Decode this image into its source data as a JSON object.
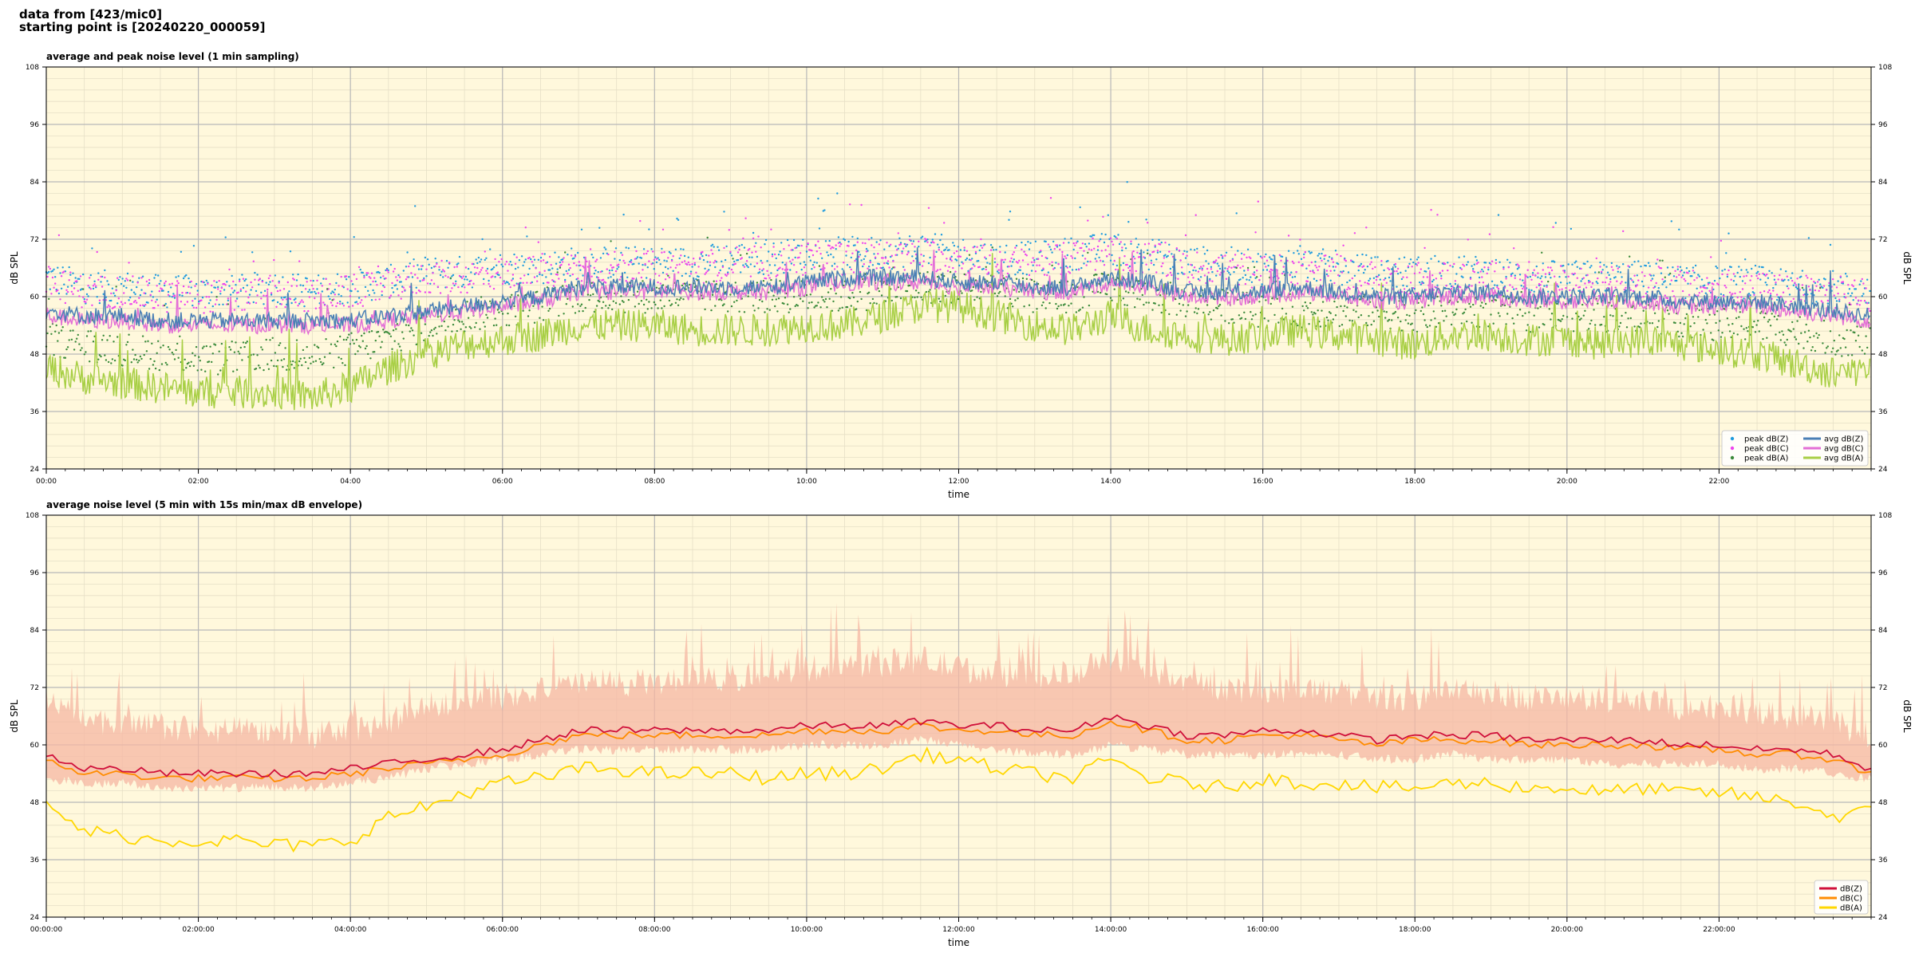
{
  "header": {
    "line1": "data from [423/mic0]",
    "line2": "starting point is [20240220_000059]"
  },
  "colors": {
    "plot_bg": "#fff8dc",
    "peak_z": "#1f9bde",
    "peak_c": "#ee44ee",
    "peak_a": "#3a8a3a",
    "avg_z": "#4a7fb5",
    "avg_c": "#e36fd6",
    "avg_a": "#a8cf45",
    "db_z": "#d0103a",
    "db_c": "#ff8c00",
    "db_a": "#ffd700",
    "envelope": "#f5b7a3"
  },
  "chart_data": [
    {
      "type": "scatter",
      "title": "average and peak noise level (1 min sampling)",
      "xlabel": "time",
      "ylabel": "dB SPL",
      "ylim": [
        24,
        108
      ],
      "yticks": [
        24,
        36,
        48,
        60,
        72,
        84,
        96,
        108
      ],
      "xlim": [
        "00:00",
        "24:00"
      ],
      "xticks": [
        "00:00",
        "02:00",
        "04:00",
        "06:00",
        "08:00",
        "10:00",
        "12:00",
        "14:00",
        "16:00",
        "18:00",
        "20:00",
        "22:00"
      ],
      "grid": true,
      "legend_position": "bottom-right",
      "x": [
        "00:00",
        "00:30",
        "01:00",
        "01:30",
        "02:00",
        "02:30",
        "03:00",
        "03:30",
        "04:00",
        "04:30",
        "05:00",
        "05:30",
        "06:00",
        "06:30",
        "07:00",
        "07:30",
        "08:00",
        "08:30",
        "09:00",
        "09:30",
        "10:00",
        "10:30",
        "11:00",
        "11:30",
        "12:00",
        "12:30",
        "13:00",
        "13:30",
        "14:00",
        "14:30",
        "15:00",
        "15:30",
        "16:00",
        "16:30",
        "17:00",
        "17:30",
        "18:00",
        "18:30",
        "19:00",
        "19:30",
        "20:00",
        "20:30",
        "21:00",
        "21:30",
        "22:00",
        "22:30",
        "23:00",
        "23:30",
        "23:59"
      ],
      "series": [
        {
          "name": "peak dB(Z)",
          "kind": "points",
          "values": [
            63,
            61,
            61,
            60,
            60,
            60,
            61,
            60,
            61,
            62,
            64,
            64,
            65,
            65,
            66,
            66,
            66,
            66,
            67,
            67,
            68,
            68,
            68,
            69,
            68,
            67,
            67,
            68,
            69,
            68,
            66,
            66,
            65,
            66,
            65,
            64,
            64,
            64,
            64,
            63,
            63,
            63,
            63,
            62,
            62,
            62,
            61,
            61,
            60
          ]
        },
        {
          "name": "peak dB(C)",
          "kind": "points",
          "values": [
            62,
            60,
            60,
            59,
            59,
            59,
            60,
            59,
            60,
            61,
            63,
            63,
            64,
            64,
            65,
            65,
            65,
            65,
            66,
            66,
            67,
            67,
            67,
            68,
            67,
            66,
            66,
            67,
            68,
            67,
            65,
            65,
            64,
            65,
            64,
            63,
            63,
            63,
            63,
            62,
            62,
            62,
            62,
            61,
            61,
            61,
            60,
            60,
            59
          ]
        },
        {
          "name": "peak dB(A)",
          "kind": "points",
          "values": [
            50,
            49,
            48,
            47,
            46,
            46,
            47,
            46,
            48,
            50,
            53,
            55,
            56,
            57,
            59,
            59,
            59,
            59,
            59,
            59,
            59,
            59,
            60,
            61,
            61,
            60,
            59,
            59,
            61,
            59,
            58,
            57,
            56,
            56,
            56,
            56,
            55,
            56,
            56,
            55,
            55,
            55,
            55,
            54,
            53,
            53,
            52,
            50,
            50
          ]
        },
        {
          "name": "avg dB(Z)",
          "kind": "line",
          "values": [
            57,
            56,
            56,
            55,
            55,
            55,
            55,
            55,
            55,
            56,
            57,
            58,
            59,
            60,
            62,
            62,
            62,
            62,
            62,
            62,
            63,
            64,
            64,
            64,
            63,
            63,
            62,
            62,
            64,
            63,
            61,
            61,
            61,
            62,
            61,
            60,
            60,
            61,
            61,
            60,
            60,
            60,
            60,
            59,
            59,
            59,
            58,
            57,
            56
          ]
        },
        {
          "name": "avg dB(C)",
          "kind": "line",
          "values": [
            56,
            55,
            55,
            54,
            54,
            54,
            54,
            54,
            54,
            55,
            56,
            57,
            58,
            59,
            61,
            61,
            61,
            61,
            61,
            61,
            62,
            63,
            63,
            63,
            62,
            62,
            61,
            61,
            63,
            62,
            60,
            60,
            60,
            61,
            60,
            59,
            59,
            60,
            60,
            59,
            59,
            59,
            59,
            58,
            58,
            58,
            57,
            56,
            55
          ]
        },
        {
          "name": "avg dB(A)",
          "kind": "line",
          "values": [
            45,
            43,
            42,
            41,
            40,
            40,
            40,
            39,
            41,
            45,
            48,
            50,
            51,
            52,
            54,
            54,
            54,
            53,
            53,
            53,
            54,
            54,
            56,
            58,
            58,
            56,
            54,
            53,
            56,
            53,
            52,
            51,
            52,
            53,
            52,
            51,
            50,
            52,
            52,
            51,
            51,
            50,
            51,
            50,
            49,
            48,
            46,
            44,
            45
          ]
        }
      ]
    },
    {
      "type": "line",
      "title": "average noise level (5 min with 15s min/max dB envelope)",
      "xlabel": "time",
      "ylabel": "dB SPL",
      "ylim": [
        24,
        108
      ],
      "yticks": [
        24,
        36,
        48,
        60,
        72,
        84,
        96,
        108
      ],
      "xlim": [
        "00:00:00",
        "24:00:00"
      ],
      "xticks": [
        "00:00:00",
        "02:00:00",
        "04:00:00",
        "06:00:00",
        "08:00:00",
        "10:00:00",
        "12:00:00",
        "14:00:00",
        "16:00:00",
        "18:00:00",
        "20:00:00",
        "22:00:00"
      ],
      "grid": true,
      "legend_position": "bottom-right",
      "x": [
        "00:00",
        "00:30",
        "01:00",
        "01:30",
        "02:00",
        "02:30",
        "03:00",
        "03:30",
        "04:00",
        "04:30",
        "05:00",
        "05:30",
        "06:00",
        "06:30",
        "07:00",
        "07:30",
        "08:00",
        "08:30",
        "09:00",
        "09:30",
        "10:00",
        "10:30",
        "11:00",
        "11:30",
        "12:00",
        "12:30",
        "13:00",
        "13:30",
        "14:00",
        "14:30",
        "15:00",
        "15:30",
        "16:00",
        "16:30",
        "17:00",
        "17:30",
        "18:00",
        "18:30",
        "19:00",
        "19:30",
        "20:00",
        "20:30",
        "21:00",
        "21:30",
        "22:00",
        "22:30",
        "23:00",
        "23:30",
        "23:59"
      ],
      "envelope": {
        "name": "min/max envelope",
        "min": [
          53,
          52,
          52,
          51,
          51,
          51,
          51,
          51,
          52,
          53,
          55,
          56,
          57,
          58,
          59,
          59,
          59,
          59,
          59,
          59,
          60,
          60,
          60,
          61,
          60,
          59,
          58,
          58,
          60,
          59,
          58,
          58,
          58,
          58,
          58,
          57,
          57,
          58,
          57,
          57,
          57,
          56,
          56,
          56,
          56,
          55,
          55,
          54,
          53
        ],
        "max": [
          70,
          66,
          64,
          64,
          63,
          63,
          63,
          62,
          63,
          65,
          68,
          70,
          70,
          71,
          73,
          73,
          73,
          73,
          74,
          75,
          76,
          77,
          77,
          78,
          76,
          75,
          74,
          75,
          78,
          76,
          73,
          72,
          71,
          72,
          71,
          70,
          70,
          71,
          71,
          70,
          70,
          69,
          69,
          68,
          68,
          67,
          66,
          65,
          62
        ]
      },
      "series": [
        {
          "name": "dB(Z)",
          "values": [
            58,
            55,
            55,
            54,
            54,
            54,
            54,
            54,
            55,
            56,
            57,
            58,
            59,
            61,
            63,
            63,
            63,
            63,
            63,
            63,
            64,
            64,
            64,
            65,
            64,
            64,
            63,
            63,
            66,
            64,
            62,
            62,
            63,
            63,
            62,
            61,
            62,
            62,
            62,
            61,
            61,
            61,
            61,
            60,
            60,
            59,
            59,
            58,
            55
          ]
        },
        {
          "name": "dB(C)",
          "values": [
            57,
            54,
            54,
            53,
            53,
            53,
            53,
            53,
            54,
            55,
            56,
            57,
            58,
            60,
            62,
            62,
            62,
            62,
            62,
            62,
            63,
            63,
            63,
            64,
            63,
            63,
            62,
            62,
            65,
            63,
            61,
            61,
            62,
            62,
            61,
            60,
            61,
            61,
            61,
            60,
            60,
            60,
            60,
            59,
            59,
            58,
            58,
            57,
            54
          ]
        },
        {
          "name": "dB(A)",
          "values": [
            47,
            42,
            41,
            40,
            40,
            40,
            39,
            39,
            40,
            45,
            47,
            50,
            52,
            53,
            55,
            55,
            54,
            54,
            54,
            53,
            54,
            54,
            55,
            58,
            57,
            55,
            54,
            53,
            57,
            53,
            52,
            51,
            53,
            52,
            52,
            51,
            51,
            52,
            52,
            51,
            51,
            50,
            51,
            50,
            50,
            49,
            48,
            45,
            46
          ]
        }
      ]
    }
  ]
}
